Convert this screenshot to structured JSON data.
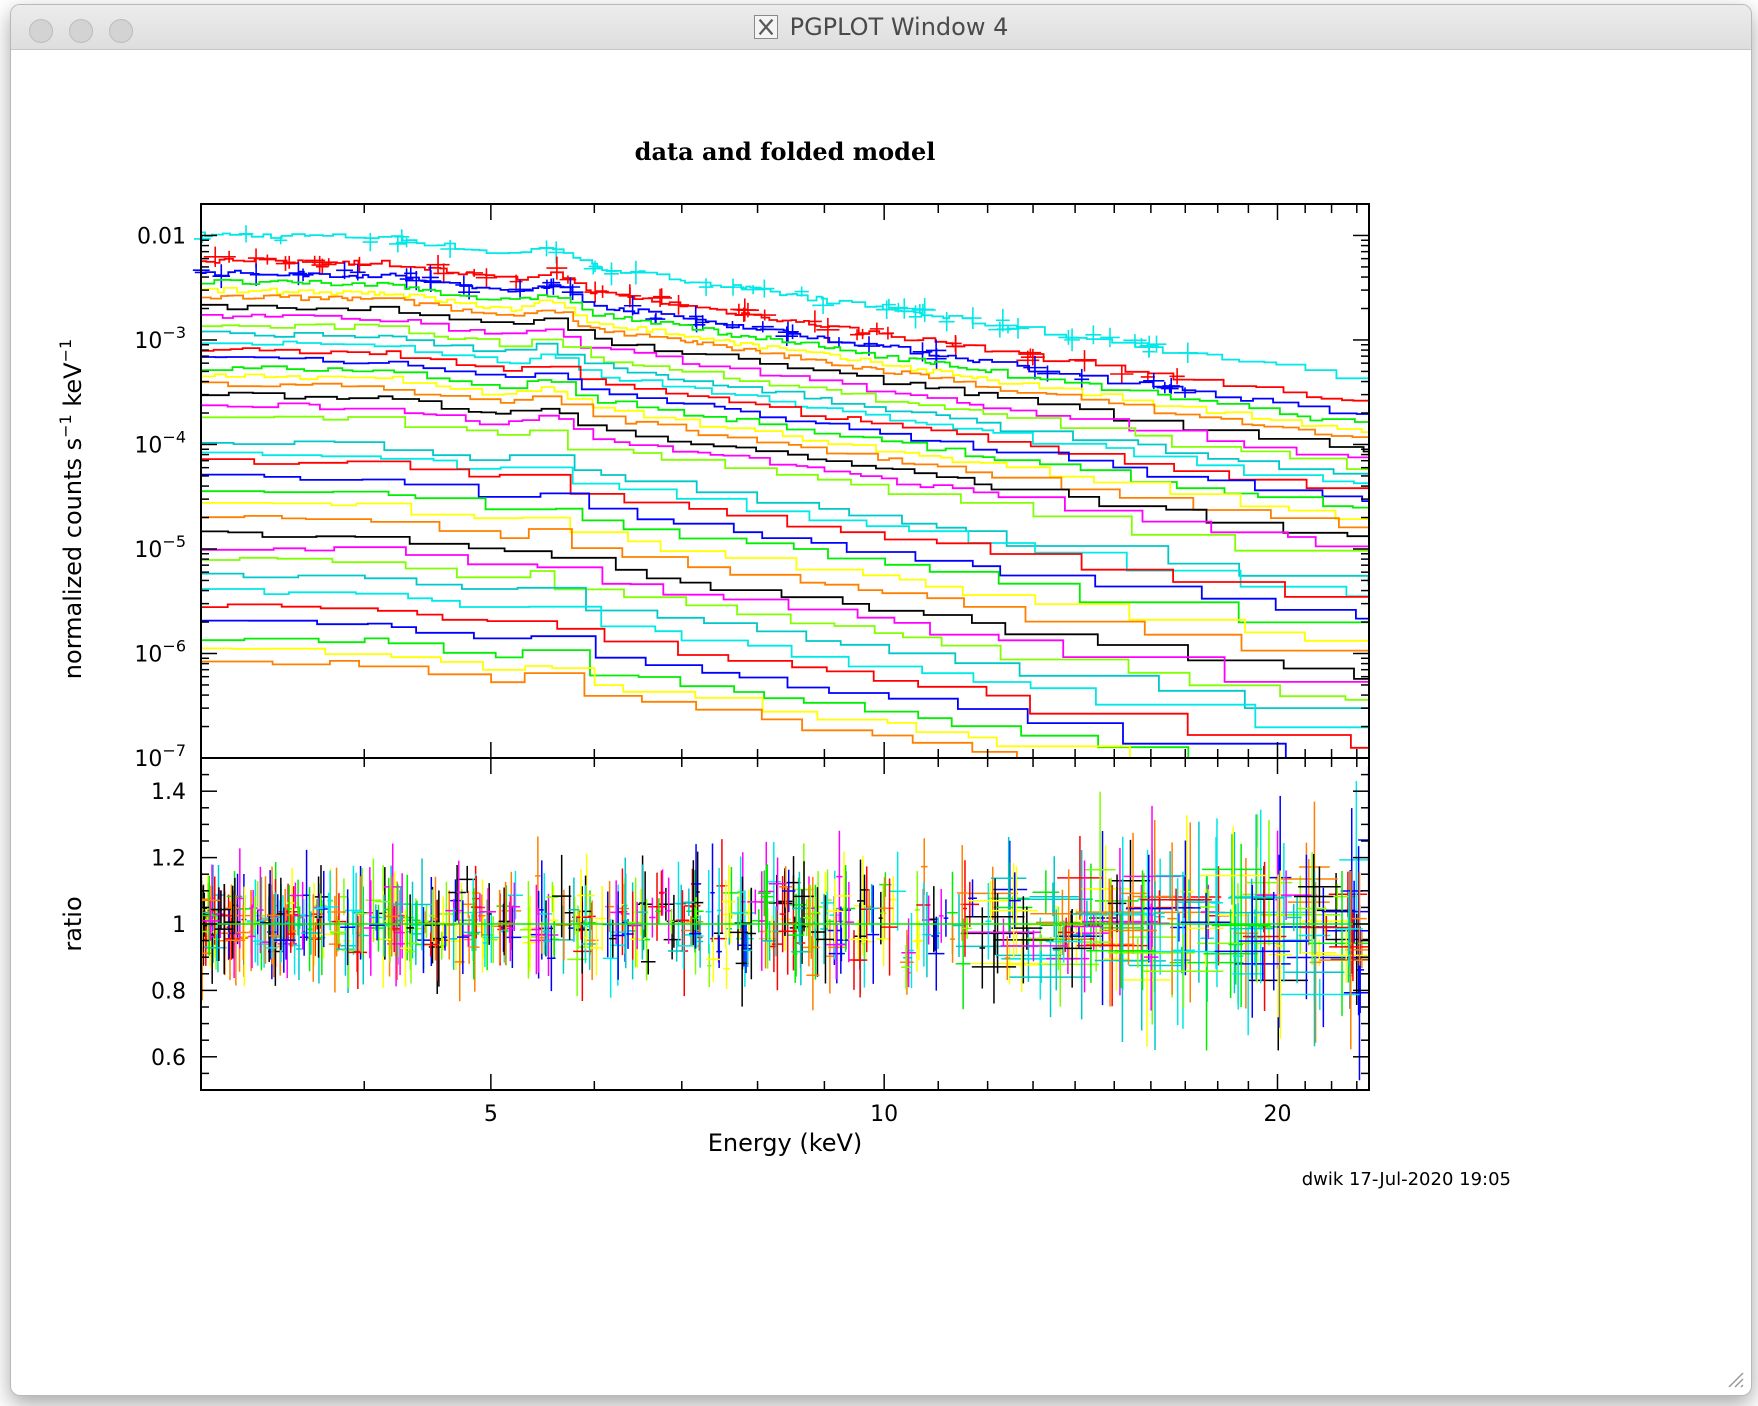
{
  "window": {
    "title": "PGPLOT Window 4"
  },
  "footer": {
    "stamp": "dwik 17-Jul-2020 19:05"
  },
  "chart_data": [
    {
      "type": "line",
      "title": "data and folded model",
      "xlabel": "Energy (keV)",
      "ylabel_base": "normalized counts s",
      "ylabel_sup1": "−1",
      "ylabel_mid": " keV",
      "ylabel_sup2": "−1",
      "x_scale": "log",
      "y_scale": "log",
      "xlim": [
        3.0,
        23.5
      ],
      "ylim": [
        1e-07,
        0.02
      ],
      "x_ticks": [
        5,
        10,
        20
      ],
      "y_ticks": [
        {
          "value": 0.01,
          "mantissa": "0.01",
          "exp": ""
        },
        {
          "value": 0.001,
          "mantissa": "10",
          "exp": "−3"
        },
        {
          "value": 0.0001,
          "mantissa": "10",
          "exp": "−4"
        },
        {
          "value": 1e-05,
          "mantissa": "10",
          "exp": "−5"
        },
        {
          "value": 1e-06,
          "mantissa": "10",
          "exp": "−6"
        },
        {
          "value": 1e-07,
          "mantissa": "10",
          "exp": "−7"
        }
      ],
      "line_energy_keV": 5.6,
      "series_colors": [
        "#00e8e8",
        "#ff0000",
        "#0000ff",
        "#00ee00",
        "#ffff00",
        "#ff8000",
        "#000000",
        "#ff00ff",
        "#80ff00",
        "#00c8c8"
      ],
      "series_norms_at_3keV": [
        0.0102,
        0.0058,
        0.0044,
        0.0036,
        0.003,
        0.0026,
        0.0021,
        0.0017,
        0.0014,
        0.00115,
        0.00095,
        0.0008,
        0.00066,
        0.00055,
        0.00046,
        0.00038,
        0.0003,
        0.00024,
        0.00019,
        0.000105,
        8.5e-05,
        7e-05,
        5e-05,
        3.8e-05,
        2.8e-05,
        2e-05,
        1.4e-05,
        1.05e-05,
        8e-06,
        5.8e-06,
        4e-06,
        2.9e-06,
        2e-06,
        1.4e-06,
        1.1e-06,
        8.5e-07
      ]
    },
    {
      "type": "scatter",
      "ylabel": "ratio",
      "y_scale": "linear",
      "ylim": [
        0.5,
        1.5
      ],
      "y_ticks": [
        0.6,
        0.8,
        1,
        1.2,
        1.4
      ],
      "reference_value": 1.0,
      "marker": "error-cross"
    }
  ]
}
